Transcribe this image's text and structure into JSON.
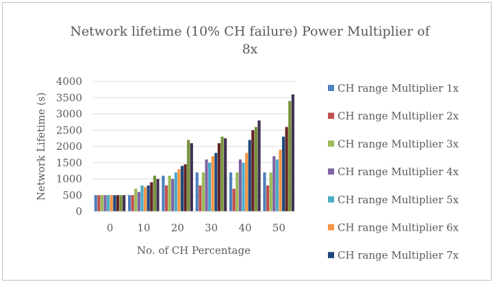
{
  "chart_data": {
    "type": "bar",
    "title_line1": "Network lifetime (10% CH failure) Power Multiplier of",
    "title_line2": "8x",
    "xlabel": "No. of CH Percentage",
    "ylabel": "Network Lifetime (s)",
    "ylim": [
      0,
      4000
    ],
    "yticks": [
      0,
      500,
      1000,
      1500,
      2000,
      2500,
      3000,
      3500,
      4000
    ],
    "grid": true,
    "legend_position": "right",
    "categories": [
      "0",
      "10",
      "20",
      "30",
      "40",
      "50"
    ],
    "series": [
      {
        "name": "CH range Multiplier 1x",
        "color": "#4f81bd",
        "values": [
          500,
          500,
          1100,
          1200,
          1200,
          1200
        ]
      },
      {
        "name": "CH range Multiplier 2x",
        "color": "#c0504d",
        "values": [
          500,
          500,
          800,
          800,
          700,
          800
        ]
      },
      {
        "name": "CH range Multiplier 3x",
        "color": "#9bbb59",
        "values": [
          500,
          700,
          1100,
          1200,
          1200,
          1200
        ]
      },
      {
        "name": "CH range Multiplier 4x",
        "color": "#8064a2",
        "values": [
          500,
          600,
          1000,
          1600,
          1600,
          1700
        ]
      },
      {
        "name": "CH range Multiplier 5x",
        "color": "#4bacc6",
        "values": [
          500,
          800,
          1200,
          1500,
          1500,
          1600
        ]
      },
      {
        "name": "CH range Multiplier 6x",
        "color": "#f79646",
        "values": [
          500,
          750,
          1300,
          1700,
          1800,
          1900
        ]
      },
      {
        "name": "CH range Multiplier 7x",
        "color": "#1f497d",
        "values": [
          500,
          800,
          1400,
          1800,
          2200,
          2300
        ]
      },
      {
        "name": "",
        "color": "#632523",
        "values": [
          500,
          900,
          1450,
          2100,
          2500,
          2600
        ]
      },
      {
        "name": "",
        "color": "#77933c",
        "values": [
          500,
          1100,
          2200,
          2300,
          2600,
          3400
        ]
      },
      {
        "name": "",
        "color": "#403151",
        "values": [
          500,
          1000,
          2100,
          2250,
          2800,
          3600
        ]
      }
    ]
  }
}
